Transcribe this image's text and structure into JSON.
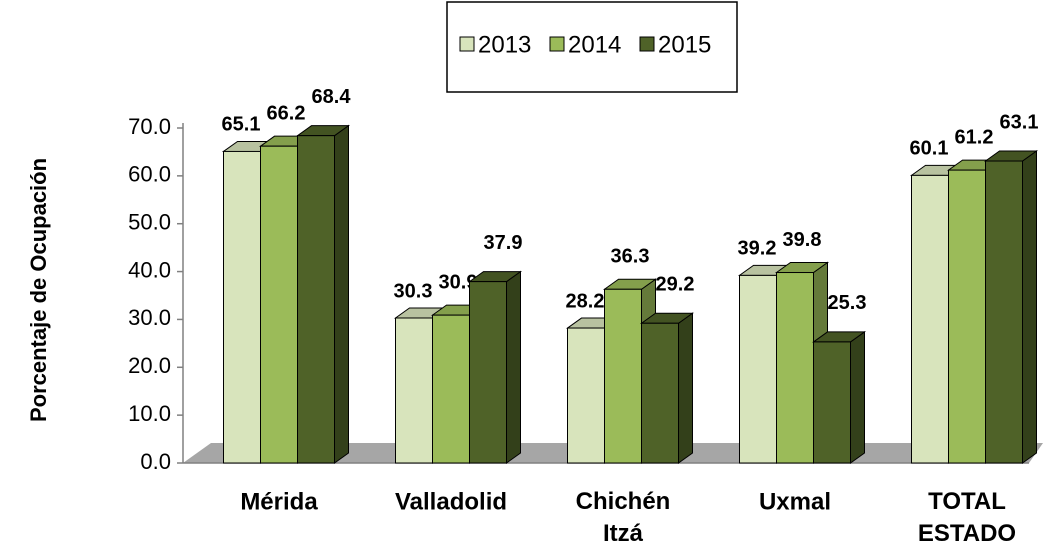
{
  "chart_data": {
    "type": "bar3d",
    "y_axis_label": "Porcentaje de Ocupación",
    "categories": [
      "Mérida",
      "Valladolid",
      "Chichén Itzá",
      "Uxmal",
      "TOTAL ESTADO"
    ],
    "series": [
      {
        "name": "2013",
        "color": "#d8e4bc",
        "values": [
          65.1,
          30.3,
          28.2,
          39.2,
          60.1
        ]
      },
      {
        "name": "2014",
        "color": "#9bbb59",
        "values": [
          66.2,
          30.9,
          36.3,
          39.8,
          61.2
        ]
      },
      {
        "name": "2015",
        "color": "#4f6228",
        "values": [
          68.4,
          37.9,
          29.2,
          25.3,
          63.1
        ]
      }
    ],
    "ylim": [
      0,
      70
    ],
    "yticks": [
      {
        "value": 0,
        "label": "0.0"
      },
      {
        "value": 10,
        "label": "10.0"
      },
      {
        "value": 20,
        "label": "20.0"
      },
      {
        "value": 30,
        "label": "30.0"
      },
      {
        "value": 40,
        "label": "40.0"
      },
      {
        "value": 50,
        "label": "50.0"
      },
      {
        "value": 60,
        "label": "60.0"
      },
      {
        "value": 70,
        "label": "70.0"
      }
    ],
    "legend": "top"
  }
}
